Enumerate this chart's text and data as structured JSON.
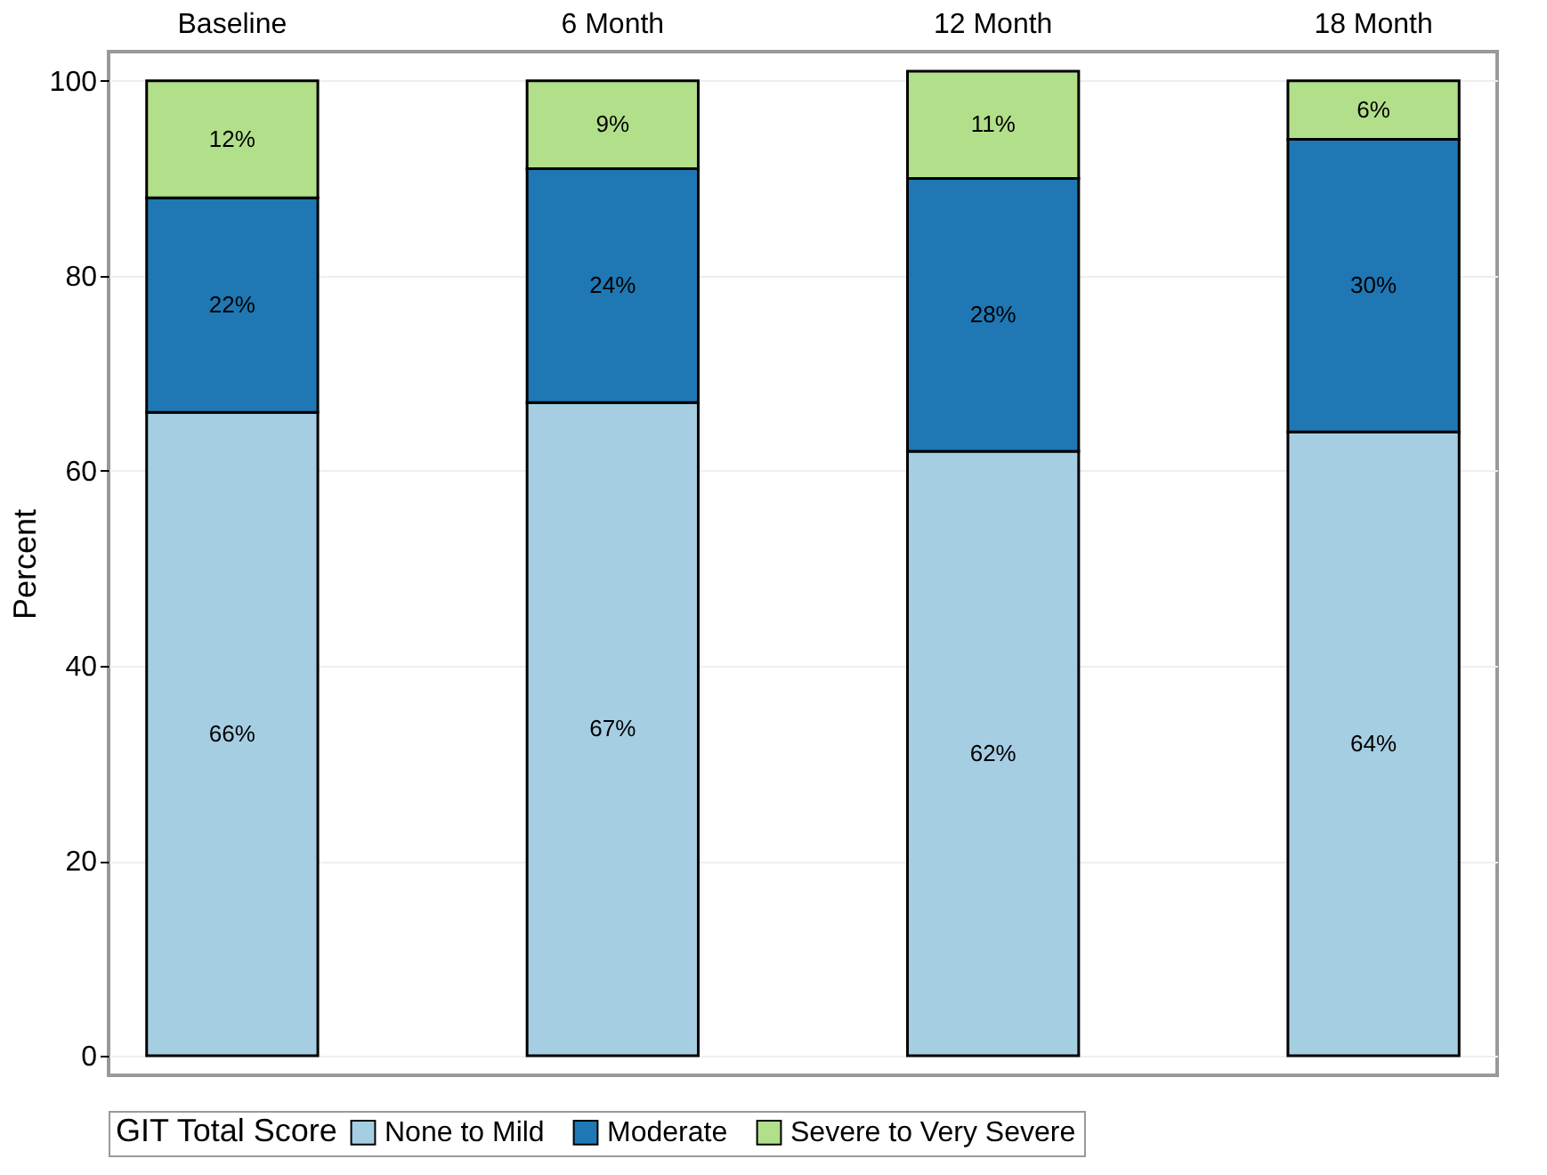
{
  "chart_data": {
    "type": "bar",
    "stacked": true,
    "ylabel": "Percent",
    "legend_title": "GIT Total Score",
    "legend": "bottom",
    "grid": "y",
    "categories": [
      "Baseline",
      "6 Month",
      "12 Month",
      "18 Month"
    ],
    "ylim": [
      -2,
      103
    ],
    "yticks": [
      0,
      20,
      40,
      60,
      80,
      100
    ],
    "series": [
      {
        "name": "None to Mild",
        "color": "#a6cee3",
        "values": [
          66,
          67,
          62,
          64
        ],
        "value_labels": [
          "66%",
          "67%",
          "62%",
          "64%"
        ]
      },
      {
        "name": "Moderate",
        "color": "#1f78b4",
        "values": [
          22,
          24,
          28,
          30
        ],
        "value_labels": [
          "22%",
          "24%",
          "28%",
          "30%"
        ]
      },
      {
        "name": "Severe to Very Severe",
        "color": "#b2df8a",
        "values": [
          12,
          9,
          11,
          6
        ],
        "value_labels": [
          "12%",
          "9%",
          "11%",
          "6%"
        ]
      }
    ]
  }
}
